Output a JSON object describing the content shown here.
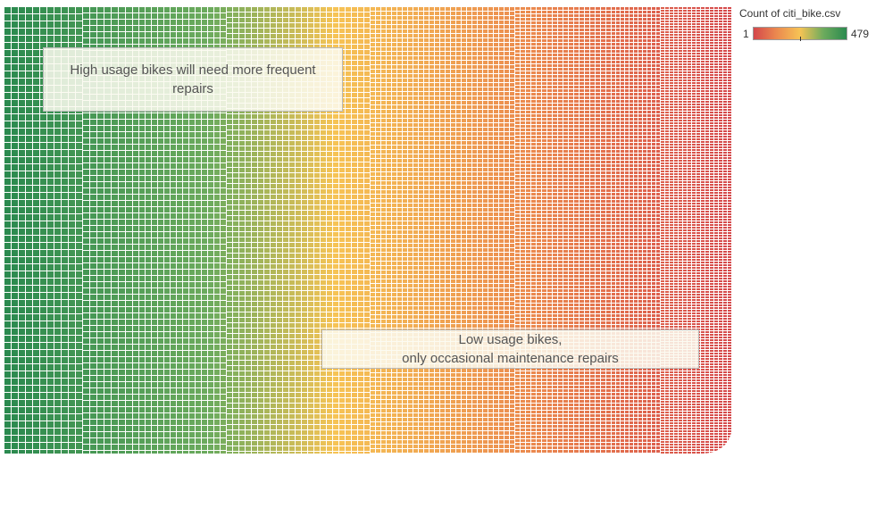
{
  "chart_data": {
    "type": "heatmap",
    "title": "",
    "measure": "Count of citi_bike.csv",
    "color_scale": {
      "min": 1,
      "max": 479,
      "min_label": "1",
      "max_label": "479",
      "colors": [
        "#d4474b",
        "#eb8a4f",
        "#f6c355",
        "#6dab5d",
        "#2b8a4f"
      ]
    },
    "annotations": [
      {
        "lines": [
          "High usage bikes will need more frequent",
          "repairs"
        ]
      },
      {
        "lines": [
          "Low usage bikes,",
          "only occasional maintenance repairs"
        ]
      }
    ],
    "grid": "off"
  }
}
